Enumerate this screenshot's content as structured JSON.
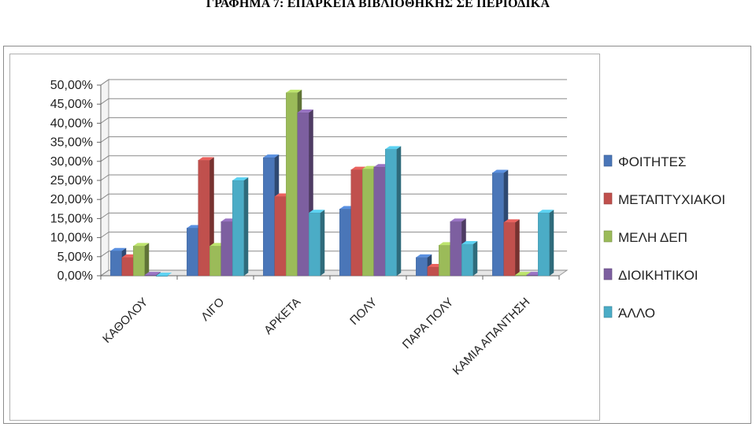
{
  "title": "ΓΡΑΦΗΜΑ 7: ΕΠΑΡΚΕΙΑ ΒΙΒΛΙΟΘΗΚΗΣ ΣΕ ΠΕΡΙΟΔΙΚΑ",
  "chart_data": {
    "type": "bar",
    "title": "ΓΡΑΦΗΜΑ 7: ΕΠΑΡΚΕΙΑ ΒΙΒΛΙΟΘΗΚΗΣ ΣΕ ΠΕΡΙΟΔΙΚΑ",
    "categories": [
      "ΚΑΘΟΛΟΥ",
      "ΛΙΓΟ",
      "ΑΡΚΕΤΑ",
      "ΠΟΛΥ",
      "ΠΑΡΑ ΠΟΛΥ",
      "ΚΑΜΙΑ ΑΠΑΝΤΗΣΗ"
    ],
    "series": [
      {
        "name": "ΦΟΙΤΗΤΕΣ",
        "color": "#4a76b8",
        "values": [
          6.5,
          12.5,
          31.0,
          17.5,
          4.8,
          27.0
        ]
      },
      {
        "name": "ΜΕΤΑΠΤΥΧΙΑΚΟΙ",
        "color": "#c0504d",
        "values": [
          4.8,
          30.3,
          20.8,
          27.8,
          2.3,
          14.0
        ]
      },
      {
        "name": "ΜΕΛΗ ΔΕΠ",
        "color": "#9bbb59",
        "values": [
          7.8,
          7.8,
          48.0,
          28.0,
          8.0,
          0.2
        ]
      },
      {
        "name": "ΔΙΟΙΚΗΤΙΚΟΙ",
        "color": "#7d5fa0",
        "values": [
          0.2,
          14.2,
          42.8,
          28.5,
          14.2,
          0.2
        ]
      },
      {
        "name": "ΆΛΛΟ",
        "color": "#4bacc6",
        "values": [
          0.0,
          25.0,
          16.5,
          33.2,
          8.3,
          16.5
        ]
      }
    ],
    "ylim": [
      0,
      50
    ],
    "yticks": [
      "0,00%",
      "5,00%",
      "10,00%",
      "15,00%",
      "20,00%",
      "25,00%",
      "30,00%",
      "35,00%",
      "40,00%",
      "45,00%",
      "50,00%"
    ],
    "grid": true,
    "legend": "right",
    "style": "3d-clustered-column"
  }
}
